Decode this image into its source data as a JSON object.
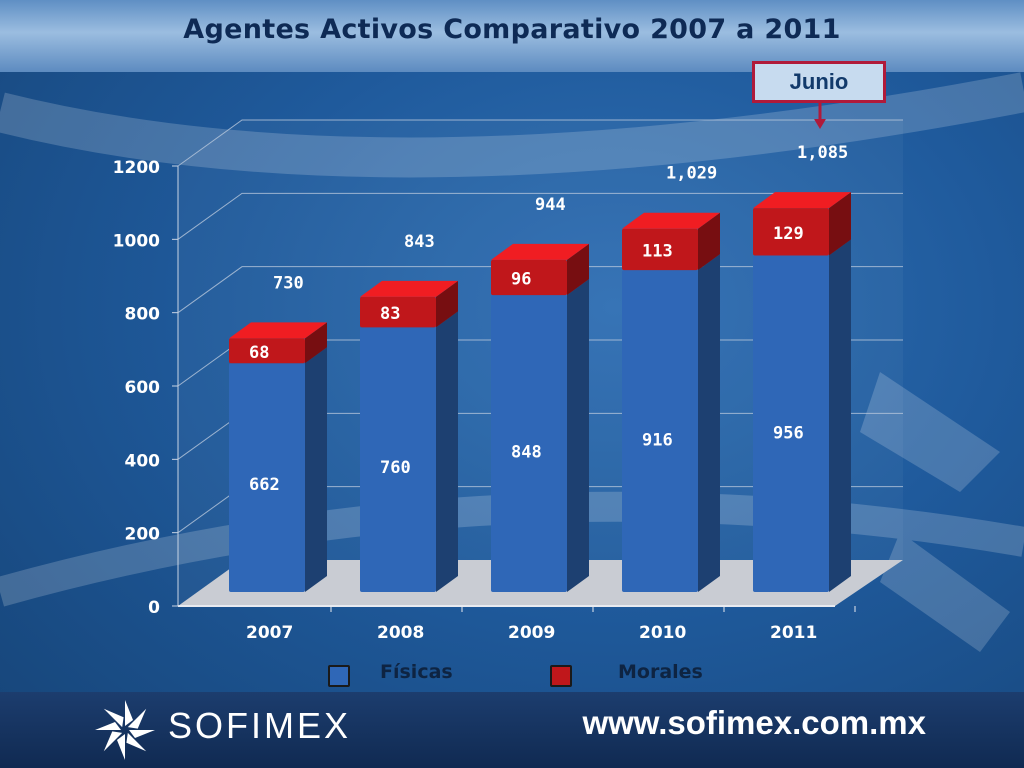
{
  "slide": {
    "title": "Agentes Activos Comparativo 2007 a 2011",
    "annotation": "Junio",
    "website": "www.sofimex.com.mx",
    "logo_text": "SOFIMEX",
    "colors": {
      "fisicas": "#2f67b7",
      "morales": "#c0171b",
      "annotation_border": "#b01a3a"
    }
  },
  "chart_data": {
    "type": "bar",
    "stacked": true,
    "categories": [
      "2007",
      "2008",
      "2009",
      "2010",
      "2011"
    ],
    "series": [
      {
        "name": "Físicas",
        "values": [
          662,
          760,
          848,
          916,
          956
        ],
        "labels": [
          "662",
          "760",
          "848",
          "916",
          "956"
        ]
      },
      {
        "name": "Morales",
        "values": [
          68,
          83,
          96,
          113,
          129
        ],
        "labels": [
          "68",
          "83",
          "96",
          "113",
          "129"
        ]
      }
    ],
    "totals": [
      730,
      843,
      944,
      1029,
      1085
    ],
    "total_labels": [
      "730",
      "843",
      "944",
      "1,029",
      "1,085"
    ],
    "ylim": [
      0,
      1200
    ],
    "yticks": [
      0,
      200,
      400,
      600,
      800,
      1000,
      1200
    ],
    "ytick_labels": [
      "0",
      "200",
      "400",
      "600",
      "800",
      "1000",
      "1200"
    ],
    "grid": true,
    "legend_position": "bottom"
  }
}
